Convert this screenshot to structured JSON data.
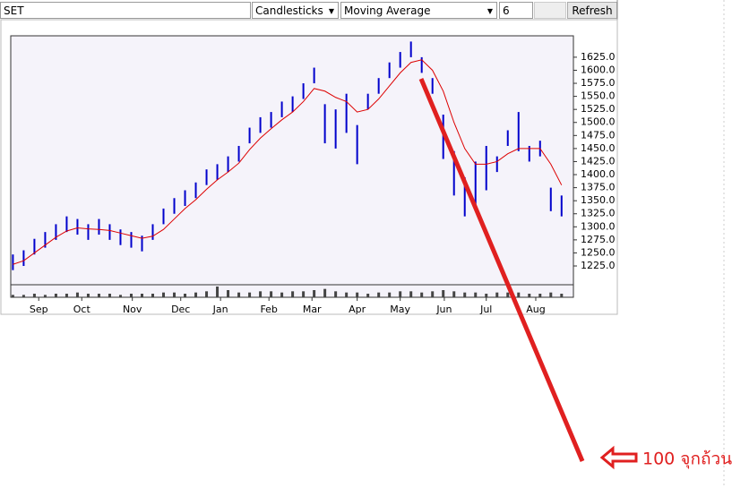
{
  "toolbar": {
    "symbol": "SET",
    "chart_style": "Candlesticks",
    "indicator": "Moving Average",
    "period": "6",
    "button": "Refresh"
  },
  "annotation": "100 จุกถ้วน",
  "chart_data": {
    "type": "ohlc",
    "xlim": [
      -0.2,
      52.1
    ],
    "xticks": [
      {
        "value": 2.4,
        "label": "Sep"
      },
      {
        "value": 6.4,
        "label": "Oct"
      },
      {
        "value": 11.1,
        "label": "Nov"
      },
      {
        "value": 15.6,
        "label": "Dec"
      },
      {
        "value": 19.3,
        "label": "Jan"
      },
      {
        "value": 23.8,
        "label": "Feb"
      },
      {
        "value": 27.8,
        "label": "Mar"
      },
      {
        "value": 32.0,
        "label": "Apr"
      },
      {
        "value": 36.0,
        "label": "May"
      },
      {
        "value": 40.1,
        "label": "Jun"
      },
      {
        "value": 44.0,
        "label": "Jul"
      },
      {
        "value": 48.6,
        "label": "Aug"
      }
    ],
    "ylim": [
      1189,
      1666
    ],
    "yticks": [
      {
        "value": 1225,
        "label": "1225.0"
      },
      {
        "value": 1250,
        "label": "1250.0"
      },
      {
        "value": 1275,
        "label": "1275.0"
      },
      {
        "value": 1300,
        "label": "1300.0"
      },
      {
        "value": 1325,
        "label": "1325.0"
      },
      {
        "value": 1350,
        "label": "1350.0"
      },
      {
        "value": 1375,
        "label": "1375.0"
      },
      {
        "value": 1400,
        "label": "1400.0"
      },
      {
        "value": 1425,
        "label": "1425.0"
      },
      {
        "value": 1450,
        "label": "1450.0"
      },
      {
        "value": 1475,
        "label": "1475.0"
      },
      {
        "value": 1500,
        "label": "1500.0"
      },
      {
        "value": 1525,
        "label": "1525.0"
      },
      {
        "value": 1550,
        "label": "1550.0"
      },
      {
        "value": 1575,
        "label": "1575.0"
      },
      {
        "value": 1600,
        "label": "1600.0"
      },
      {
        "value": 1625,
        "label": "1625.0"
      }
    ],
    "price_color": "#0000cc",
    "ma_color": "#dd0000",
    "volume_color": "#444444",
    "high": [
      1247,
      1255,
      1277,
      1290,
      1305,
      1320,
      1315,
      1305,
      1315,
      1305,
      1295,
      1290,
      1283,
      1305,
      1335,
      1355,
      1370,
      1385,
      1410,
      1420,
      1435,
      1455,
      1490,
      1510,
      1520,
      1540,
      1550,
      1575,
      1605,
      1535,
      1525,
      1555,
      1495,
      1555,
      1585,
      1615,
      1635,
      1655,
      1625,
      1585,
      1515,
      1445,
      1395,
      1425,
      1455,
      1435,
      1485,
      1520,
      1455,
      1465,
      1375,
      1360
    ],
    "low": [
      1217,
      1225,
      1247,
      1260,
      1275,
      1290,
      1285,
      1275,
      1285,
      1275,
      1265,
      1260,
      1253,
      1275,
      1305,
      1325,
      1340,
      1355,
      1380,
      1390,
      1405,
      1425,
      1460,
      1480,
      1490,
      1510,
      1520,
      1545,
      1575,
      1460,
      1450,
      1480,
      1420,
      1525,
      1555,
      1585,
      1605,
      1625,
      1595,
      1555,
      1430,
      1360,
      1320,
      1340,
      1370,
      1405,
      1455,
      1445,
      1425,
      1435,
      1330,
      1320
    ],
    "ma": [
      1228,
      1235,
      1250,
      1265,
      1280,
      1292,
      1298,
      1296,
      1295,
      1293,
      1288,
      1283,
      1278,
      1282,
      1295,
      1315,
      1335,
      1352,
      1372,
      1390,
      1405,
      1422,
      1448,
      1470,
      1488,
      1505,
      1520,
      1540,
      1565,
      1560,
      1548,
      1540,
      1520,
      1525,
      1545,
      1570,
      1595,
      1615,
      1620,
      1600,
      1560,
      1500,
      1450,
      1420,
      1420,
      1425,
      1440,
      1450,
      1450,
      1450,
      1420,
      1380
    ],
    "volume": [
      2,
      2,
      3,
      2,
      3,
      3,
      4,
      3,
      3,
      3,
      2,
      3,
      3,
      3,
      4,
      4,
      3,
      4,
      5,
      9,
      6,
      4,
      4,
      5,
      5,
      4,
      5,
      5,
      6,
      7,
      5,
      4,
      4,
      3,
      4,
      4,
      5,
      5,
      4,
      5,
      6,
      5,
      4,
      4,
      3,
      4,
      4,
      4,
      3,
      3,
      4,
      3
    ]
  }
}
